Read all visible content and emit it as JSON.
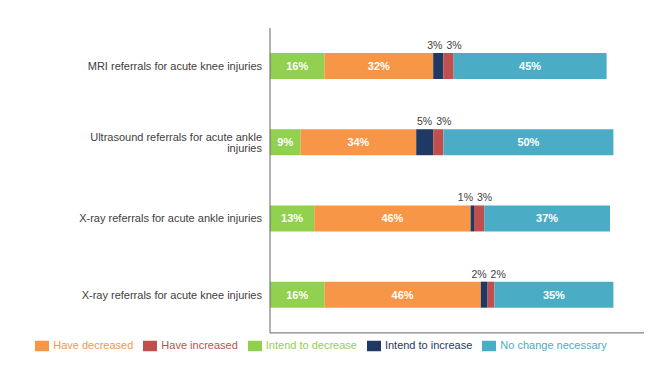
{
  "chart_data": {
    "type": "bar",
    "orientation": "horizontal",
    "stacked": true,
    "data_labels": true,
    "tick_labels": "y",
    "grid": false,
    "legend": "bottom",
    "categories": [
      "X-ray referrals for acute knee injuries",
      "X-ray referrals for acute ankle injuries",
      "Ultrasound referrals for acute ankle injuries",
      "MRI referrals for acute knee injuries"
    ],
    "xlim": [
      0,
      110
    ],
    "series": [
      {
        "name": "Intend to decrease",
        "color": "#92d050",
        "values": [
          16,
          13,
          9,
          16
        ],
        "value_labels": [
          "16%",
          "13%",
          "9%",
          "16%"
        ]
      },
      {
        "name": "Have decreased",
        "color": "#f79646",
        "values": [
          46,
          46,
          34,
          32
        ],
        "value_labels": [
          "46%",
          "46%",
          "34%",
          "32%"
        ]
      },
      {
        "name": "Intend to increase",
        "color": "#1f3864",
        "values": [
          2,
          1,
          5,
          3
        ],
        "value_labels": [
          "2%",
          "1%",
          "5%",
          "3%"
        ]
      },
      {
        "name": "Have increased",
        "color": "#c0504d",
        "values": [
          2,
          3,
          3,
          3
        ],
        "value_labels": [
          "2%",
          "3%",
          "3%",
          "3%"
        ]
      },
      {
        "name": "No change necessary",
        "color": "#4bacc6",
        "values": [
          35,
          37,
          50,
          45
        ],
        "value_labels": [
          "35%",
          "37%",
          "50%",
          "45%"
        ]
      }
    ]
  }
}
